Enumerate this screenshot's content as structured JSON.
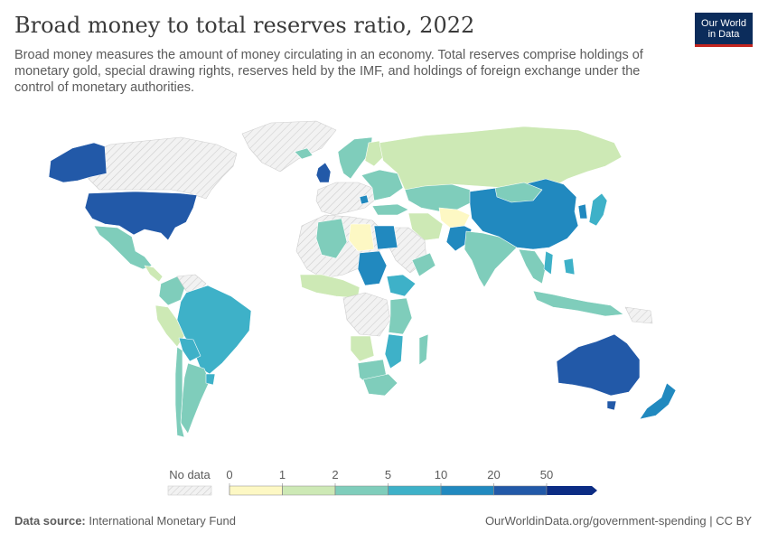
{
  "header": {
    "title": "Broad money to total reserves ratio, 2022",
    "subtitle": "Broad money measures the amount of money circulating in an economy. Total reserves comprise holdings of monetary gold, special drawing rights, reserves held by the IMF, and holdings of foreign exchange under the control of monetary authorities."
  },
  "logo": {
    "line1": "Our World",
    "line2": "in Data"
  },
  "colors": {
    "no_data_fill": "#e8e8e8",
    "border": "#ffffff",
    "bins": [
      "#fdf8c4",
      "#cde9b5",
      "#7fcdbb",
      "#3eb1c8",
      "#2189bf",
      "#2259a8",
      "#0c2c84"
    ]
  },
  "legend": {
    "no_data_label": "No data",
    "tick_labels": [
      "0",
      "1",
      "2",
      "5",
      "10",
      "20",
      "50"
    ]
  },
  "map_data": {
    "United States": "20-50",
    "Alaska (United States)": "20-50",
    "Mexico": "2-5",
    "Brazil": "5-10",
    "Australia": "20-50",
    "New Zealand": "10-20",
    "China": "10-20",
    "India": "2-5",
    "Russia": "1-2",
    "Egypt": "10-20",
    "Libya": "0-1",
    "Sudan": "10-20",
    "Pakistan": "10-20",
    "Afghanistan": "0-1",
    "United Kingdom": "20-50",
    "Kazakhstan": "2-5",
    "Argentina": "2-5",
    "Chile": "2-5",
    "Peru": "1-2",
    "Colombia": "2-5",
    "South Africa": "2-5",
    "Japan": "5-10"
  },
  "footer": {
    "source_label": "Data source:",
    "source_value": "International Monetary Fund",
    "url": "OurWorldinData.org/government-spending | CC BY"
  }
}
